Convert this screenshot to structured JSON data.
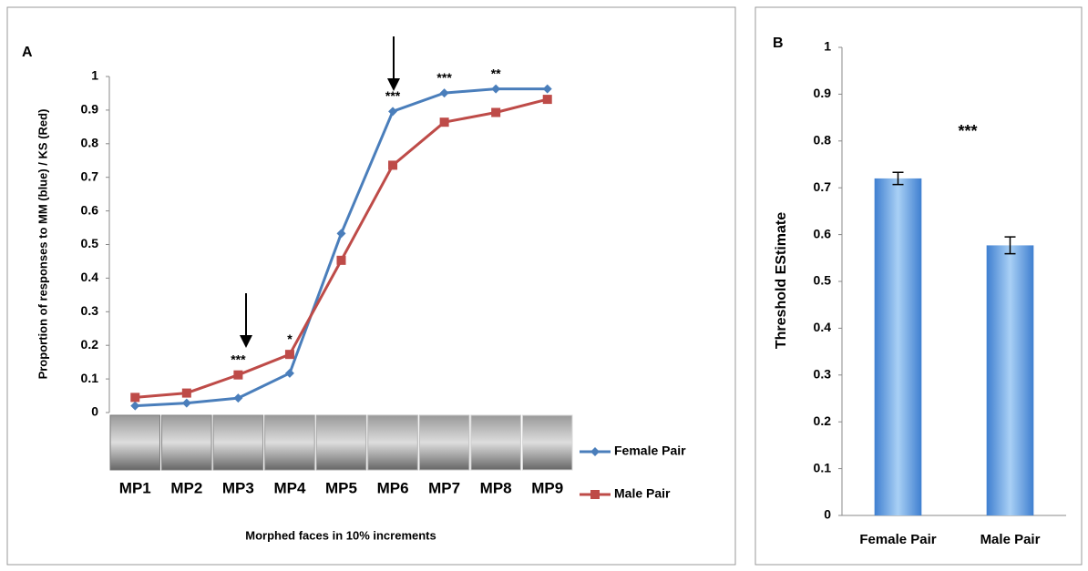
{
  "chart_data": [
    {
      "type": "line",
      "panel_label": "A",
      "y_label": "Proportion of responses to MM (blue) / KS (Red)",
      "x_label": "Morphed faces in 10% increments",
      "categories": [
        "MP1",
        "MP2",
        "MP3",
        "MP4",
        "MP5",
        "MP6",
        "MP7",
        "MP8",
        "MP9"
      ],
      "series": [
        {
          "name": "Female Pair",
          "color": "#4a7ebb",
          "marker": "diamond",
          "values": [
            0.02,
            0.028,
            0.043,
            0.117,
            0.533,
            0.896,
            0.951,
            0.963,
            0.963
          ]
        },
        {
          "name": "Male Pair",
          "color": "#be4b48",
          "marker": "square",
          "values": [
            0.045,
            0.058,
            0.112,
            0.173,
            0.453,
            0.736,
            0.864,
            0.893,
            0.932
          ]
        }
      ],
      "annotations": [
        {
          "text": "***",
          "category": "MP3"
        },
        {
          "text": "*",
          "category": "MP4"
        },
        {
          "text": "***",
          "category": "MP6"
        },
        {
          "text": "***",
          "category": "MP7"
        },
        {
          "text": "**",
          "category": "MP8"
        }
      ],
      "ylim": [
        0,
        1
      ],
      "yticks": [
        0,
        0.1,
        0.2,
        0.3,
        0.4,
        0.5,
        0.6,
        0.7,
        0.8,
        0.9,
        1
      ],
      "grid": false,
      "legend": "right"
    },
    {
      "type": "bar",
      "panel_label": "B",
      "y_label": "Threshold EStimate",
      "categories": [
        "Female Pair",
        "Male Pair"
      ],
      "values": [
        0.72,
        0.577
      ],
      "errors": [
        0.013,
        0.018
      ],
      "color": "#5b9bd5",
      "annotations": [
        {
          "text": "***"
        }
      ],
      "ylim": [
        0,
        1
      ],
      "yticks": [
        0,
        0.1,
        0.2,
        0.3,
        0.4,
        0.5,
        0.6,
        0.7,
        0.8,
        0.9,
        1
      ],
      "grid": false
    }
  ]
}
